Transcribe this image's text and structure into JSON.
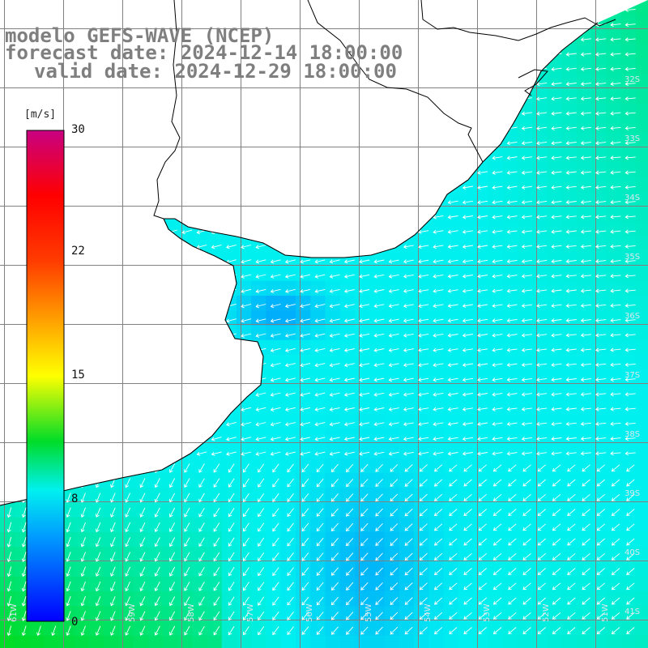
{
  "title": {
    "line1": "modelo GEFS-WAVE (NCEP)",
    "line2": "forecast date: 2024-12-14 18:00:00",
    "line3": "valid date: 2024-12-29 18:00:00"
  },
  "colorbar": {
    "units": "[m/s]",
    "ticks": [
      {
        "label": "30",
        "value": 30
      },
      {
        "label": "22",
        "value": 22
      },
      {
        "label": "15",
        "value": 15
      },
      {
        "label": "8",
        "value": 8
      },
      {
        "label": "0",
        "value": 0
      }
    ],
    "min": 0,
    "max": 30
  },
  "map": {
    "parameter": "wind speed and direction",
    "region": "Rio de la Plata / South Atlantic",
    "lat_labels": [
      "32S",
      "33S",
      "34S",
      "35S",
      "36S",
      "37S",
      "38S",
      "39S",
      "40S",
      "41S"
    ],
    "lon_labels": [
      "61W",
      "59W",
      "58W",
      "57W",
      "56W",
      "55W",
      "54W",
      "53W",
      "52W",
      "51W"
    ],
    "land_color": "#ffffff",
    "grid_color": "#808080",
    "coast_color": "#000000",
    "arrow_color": "#ffffff"
  }
}
